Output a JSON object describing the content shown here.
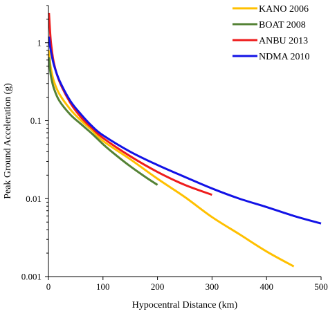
{
  "chart_data": {
    "type": "line",
    "title": "",
    "xlabel": "Hypocentral Distance (km)",
    "ylabel": "Peak Ground Acceleration (g)",
    "xlim": [
      0,
      500
    ],
    "ylim": [
      0.001,
      3
    ],
    "yscale": "log",
    "grid": false,
    "legend_position": "top-right",
    "x_ticks": [
      "0",
      "100",
      "200",
      "300",
      "400",
      "500"
    ],
    "y_ticks": [
      "0.001",
      "0.01",
      "0.1",
      "1"
    ],
    "series": [
      {
        "name": "KANO 2006",
        "color": "#FFC000",
        "x": [
          1,
          3,
          5,
          10,
          20,
          40,
          60,
          80,
          100,
          150,
          200,
          250,
          300,
          350,
          400,
          450
        ],
        "y": [
          0.8,
          0.55,
          0.45,
          0.32,
          0.22,
          0.14,
          0.1,
          0.075,
          0.055,
          0.032,
          0.018,
          0.0105,
          0.0058,
          0.0035,
          0.0021,
          0.00135
        ]
      },
      {
        "name": "BOAT 2008",
        "color": "#548235",
        "x": [
          1,
          3,
          5,
          10,
          20,
          40,
          60,
          80,
          100,
          120,
          150,
          180,
          200
        ],
        "y": [
          0.65,
          0.45,
          0.36,
          0.26,
          0.18,
          0.12,
          0.09,
          0.068,
          0.05,
          0.038,
          0.026,
          0.0185,
          0.015
        ]
      },
      {
        "name": "ANBU 2013",
        "color": "#EE1C1C",
        "x": [
          1,
          3,
          5,
          10,
          20,
          40,
          60,
          80,
          100,
          150,
          200,
          250,
          300
        ],
        "y": [
          2.4,
          1.4,
          0.95,
          0.55,
          0.32,
          0.17,
          0.11,
          0.08,
          0.06,
          0.035,
          0.022,
          0.015,
          0.0112
        ]
      },
      {
        "name": "NDMA 2010",
        "color": "#1212E6",
        "x": [
          1,
          3,
          5,
          10,
          20,
          40,
          60,
          80,
          100,
          150,
          200,
          250,
          300,
          350,
          400,
          450,
          500
        ],
        "y": [
          1.2,
          0.9,
          0.75,
          0.52,
          0.33,
          0.18,
          0.12,
          0.085,
          0.065,
          0.04,
          0.027,
          0.019,
          0.0135,
          0.01,
          0.0078,
          0.006,
          0.0048
        ]
      }
    ]
  }
}
